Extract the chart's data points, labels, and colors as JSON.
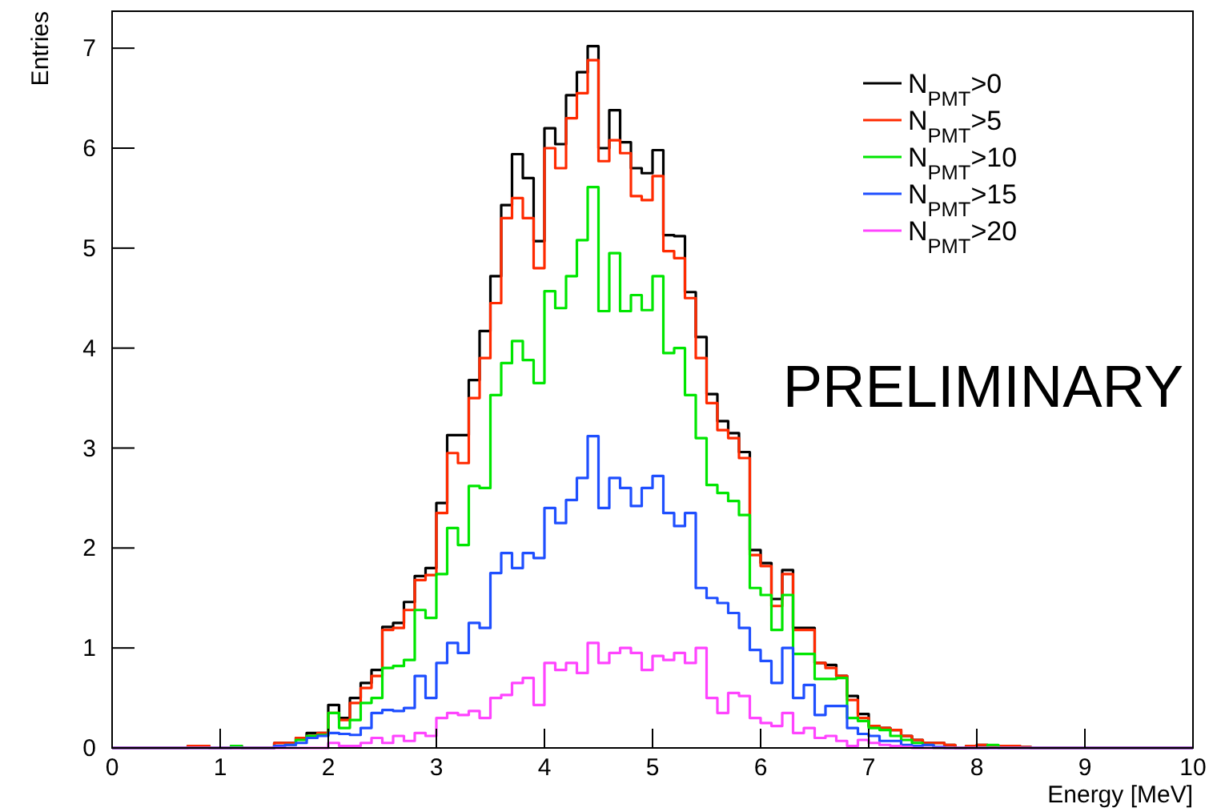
{
  "chart_data": {
    "type": "histogram",
    "xlabel": "Energy [MeV]",
    "ylabel": "Entries",
    "bins": [
      0,
      0.1,
      0.2,
      0.3,
      0.4,
      0.5,
      0.6,
      0.7,
      0.8,
      0.9,
      1,
      1.1,
      1.2,
      1.3,
      1.4,
      1.5,
      1.6,
      1.7,
      1.8,
      1.9,
      2,
      2.1,
      2.2,
      2.3,
      2.4,
      2.5,
      2.6,
      2.7,
      2.8,
      2.9,
      3,
      3.1,
      3.2,
      3.3,
      3.4,
      3.5,
      3.6,
      3.7,
      3.8,
      3.9,
      4,
      4.1,
      4.2,
      4.3,
      4.4,
      4.5,
      4.6,
      4.7,
      4.8,
      4.9,
      5,
      5.1,
      5.2,
      5.3,
      5.4,
      5.5,
      5.6,
      5.7,
      5.8,
      5.9,
      6,
      6.1,
      6.2,
      6.3,
      6.4,
      6.5,
      6.6,
      6.7,
      6.8,
      6.9,
      7,
      7.1,
      7.2,
      7.3,
      7.4,
      7.5,
      7.6,
      7.7,
      7.8,
      7.9,
      8,
      8.1,
      8.2,
      8.3,
      8.4,
      8.5,
      8.6,
      8.7,
      8.8,
      8.9,
      9,
      9.1,
      9.2,
      9.3,
      9.4,
      9.5,
      9.6,
      9.7,
      9.8,
      9.9,
      10
    ],
    "series": [
      {
        "name": "N$_{PMT}$>0",
        "color": "#000000",
        "values": [
          0,
          0,
          0,
          0,
          0,
          0,
          0,
          0.02,
          0.02,
          0,
          0,
          0.02,
          0,
          0,
          0,
          0.05,
          0.05,
          0.1,
          0.15,
          0.15,
          0.43,
          0.3,
          0.5,
          0.65,
          0.78,
          1.21,
          1.25,
          1.46,
          1.72,
          1.8,
          2.45,
          3.13,
          3.13,
          3.68,
          4.17,
          4.72,
          5.43,
          5.94,
          5.7,
          5.07,
          6.2,
          6.04,
          6.53,
          6.76,
          7.02,
          6.0,
          6.38,
          6.06,
          5.8,
          5.75,
          5.98,
          5.13,
          5.12,
          4.56,
          4.11,
          3.54,
          3.27,
          3.15,
          2.96,
          1.98,
          1.85,
          1.49,
          1.78,
          1.2,
          1.2,
          0.85,
          0.83,
          0.72,
          0.52,
          0.34,
          0.22,
          0.2,
          0.18,
          0.12,
          0.08,
          0.05,
          0.05,
          0.03,
          0,
          0.02,
          0.03,
          0.02,
          0.02,
          0.02,
          0.01,
          0,
          0,
          0,
          0,
          0,
          0,
          0,
          0,
          0,
          0,
          0,
          0,
          0,
          0,
          0
        ]
      },
      {
        "name": "N$_{PMT}$>5",
        "color": "#ff2a00",
        "values": [
          0,
          0,
          0,
          0,
          0,
          0,
          0,
          0.02,
          0.02,
          0,
          0,
          0,
          0,
          0,
          0,
          0.05,
          0.05,
          0.1,
          0.12,
          0.15,
          0.35,
          0.28,
          0.45,
          0.6,
          0.72,
          1.18,
          1.2,
          1.38,
          1.68,
          1.73,
          2.35,
          2.95,
          2.85,
          3.5,
          3.9,
          4.45,
          5.3,
          5.5,
          5.3,
          4.8,
          6.0,
          5.8,
          6.3,
          6.55,
          6.88,
          5.87,
          6.08,
          5.95,
          5.52,
          5.48,
          5.72,
          4.97,
          4.9,
          4.5,
          3.9,
          3.45,
          3.18,
          3.1,
          2.9,
          1.93,
          1.82,
          1.42,
          1.74,
          1.18,
          1.18,
          0.85,
          0.8,
          0.72,
          0.48,
          0.3,
          0.22,
          0.2,
          0.18,
          0.12,
          0.08,
          0.05,
          0.05,
          0.03,
          0,
          0.02,
          0.03,
          0.02,
          0.02,
          0.02,
          0.01,
          0,
          0,
          0,
          0,
          0,
          0,
          0,
          0,
          0,
          0,
          0,
          0,
          0,
          0,
          0
        ]
      },
      {
        "name": "N$_{PMT}$>10",
        "color": "#00e600",
        "values": [
          0,
          0,
          0,
          0,
          0,
          0,
          0,
          0,
          0,
          0,
          0,
          0.02,
          0,
          0,
          0,
          0.02,
          0.03,
          0.08,
          0.12,
          0.13,
          0.35,
          0.2,
          0.28,
          0.45,
          0.5,
          0.8,
          0.82,
          0.88,
          1.38,
          1.3,
          1.74,
          2.2,
          2.03,
          2.62,
          2.6,
          3.53,
          3.85,
          4.07,
          3.88,
          3.65,
          4.57,
          4.4,
          4.72,
          5.08,
          5.61,
          4.37,
          4.95,
          4.37,
          4.53,
          4.38,
          4.72,
          3.95,
          4.0,
          3.53,
          3.1,
          2.63,
          2.55,
          2.47,
          2.33,
          1.6,
          1.53,
          1.18,
          1.53,
          0.94,
          0.94,
          0.69,
          0.69,
          0.7,
          0.3,
          0.27,
          0.2,
          0.18,
          0.12,
          0.08,
          0.05,
          0.03,
          0,
          0,
          0,
          0,
          0,
          0.03,
          0,
          0,
          0,
          0,
          0,
          0,
          0,
          0,
          0,
          0,
          0,
          0,
          0,
          0,
          0,
          0,
          0,
          0
        ]
      },
      {
        "name": "N$_{PMT}$>15",
        "color": "#1f4fff",
        "values": [
          0,
          0,
          0,
          0,
          0,
          0,
          0,
          0,
          0,
          0,
          0,
          0,
          0,
          0,
          0,
          0.02,
          0.03,
          0.05,
          0.1,
          0.12,
          0.15,
          0.14,
          0.13,
          0.2,
          0.35,
          0.38,
          0.37,
          0.4,
          0.72,
          0.5,
          0.85,
          1.05,
          0.95,
          1.25,
          1.2,
          1.75,
          1.95,
          1.8,
          1.95,
          1.9,
          2.4,
          2.25,
          2.48,
          2.7,
          3.12,
          2.4,
          2.7,
          2.6,
          2.42,
          2.6,
          2.72,
          2.35,
          2.22,
          2.35,
          1.6,
          1.5,
          1.45,
          1.35,
          1.2,
          0.98,
          0.87,
          0.65,
          1.0,
          0.5,
          0.63,
          0.33,
          0.42,
          0.42,
          0.2,
          0.14,
          0.12,
          0.07,
          0.07,
          0.03,
          0.02,
          0.03,
          0.01,
          0,
          0,
          0,
          0,
          0,
          0,
          0,
          0,
          0,
          0,
          0,
          0,
          0,
          0,
          0,
          0,
          0,
          0,
          0,
          0,
          0,
          0,
          0
        ]
      },
      {
        "name": "N$_{PMT}$>20",
        "color": "#ff44ff",
        "values": [
          0,
          0,
          0,
          0,
          0,
          0,
          0,
          0,
          0,
          0,
          0,
          0,
          0,
          0,
          0,
          0,
          0,
          0,
          0,
          0,
          0.05,
          0.02,
          0.02,
          0.05,
          0.1,
          0.05,
          0.12,
          0.07,
          0.15,
          0.12,
          0.3,
          0.35,
          0.33,
          0.37,
          0.3,
          0.5,
          0.53,
          0.65,
          0.7,
          0.43,
          0.85,
          0.78,
          0.85,
          0.75,
          1.05,
          0.85,
          0.95,
          1.0,
          0.95,
          0.78,
          0.92,
          0.88,
          0.95,
          0.85,
          1.0,
          0.5,
          0.35,
          0.55,
          0.52,
          0.3,
          0.25,
          0.22,
          0.35,
          0.15,
          0.2,
          0.1,
          0.12,
          0.07,
          0.02,
          0.08,
          0.05,
          0.03,
          0.02,
          0.01,
          0,
          0,
          0,
          0,
          0,
          0,
          0,
          0,
          0,
          0,
          0,
          0,
          0,
          0,
          0,
          0,
          0,
          0,
          0,
          0,
          0,
          0,
          0,
          0,
          0,
          0
        ]
      }
    ],
    "xlim": [
      0,
      10
    ],
    "xticks": [
      0,
      1,
      2,
      3,
      4,
      5,
      6,
      7,
      8,
      9,
      10
    ],
    "ylim": [
      0,
      7.37
    ],
    "yticks": [
      0,
      1,
      2,
      3,
      4,
      5,
      6,
      7
    ],
    "grid": false,
    "legend": "top right",
    "annotations": [
      "PRELIMINARY"
    ]
  }
}
